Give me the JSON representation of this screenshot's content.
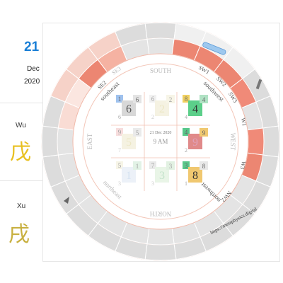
{
  "date": {
    "day": "21",
    "month": "Dec",
    "year": "2020"
  },
  "pillars": [
    {
      "label": "Wu",
      "glyph": "戊",
      "color": "#e8c020"
    },
    {
      "label": "Xu",
      "glyph": "戌",
      "color": "#c8b040"
    }
  ],
  "chart": {
    "center_date": "21 Dec 2020",
    "center_time": "9 AM",
    "url": "https://metaphysics.digital",
    "directions": {
      "south": "SOUTH",
      "north": "NORTH",
      "east": "EAST",
      "west": "WEST"
    },
    "sector_labels": {
      "southeast": "southeast",
      "southwest": "southwest",
      "northeast": "northeast",
      "northwest": "northwest"
    },
    "mountains": {
      "se2": "SE2",
      "se3": "SE3",
      "sw1": "SW1",
      "sw2": "SW2",
      "sw3": "SW3",
      "w1": "W1",
      "w3": "W3",
      "nw2": "NW2"
    },
    "palaces": [
      {
        "main": "6",
        "nums": [
          "1",
          "6",
          "6"
        ]
      },
      {
        "main": "2",
        "nums": [
          "6",
          "2",
          "2"
        ]
      },
      {
        "main": "4",
        "nums": [
          "8",
          "4",
          "4"
        ]
      },
      {
        "main": "5",
        "nums": [
          "9",
          "5",
          "7"
        ]
      },
      {
        "main": "9",
        "nums": [
          "4",
          "9",
          "2"
        ]
      },
      {
        "main": "1",
        "nums": [
          "5",
          "1",
          "3"
        ]
      },
      {
        "main": "3",
        "nums": [
          "7",
          "3",
          "3"
        ]
      },
      {
        "main": "8",
        "nums": [
          "3",
          "8",
          "1"
        ]
      }
    ]
  },
  "colors": {
    "accent": "#1a7fd6",
    "salmon": "#ec8672",
    "pink": "#f6c0b0",
    "grey": "#d8d8d8",
    "green": "#58c88a"
  }
}
